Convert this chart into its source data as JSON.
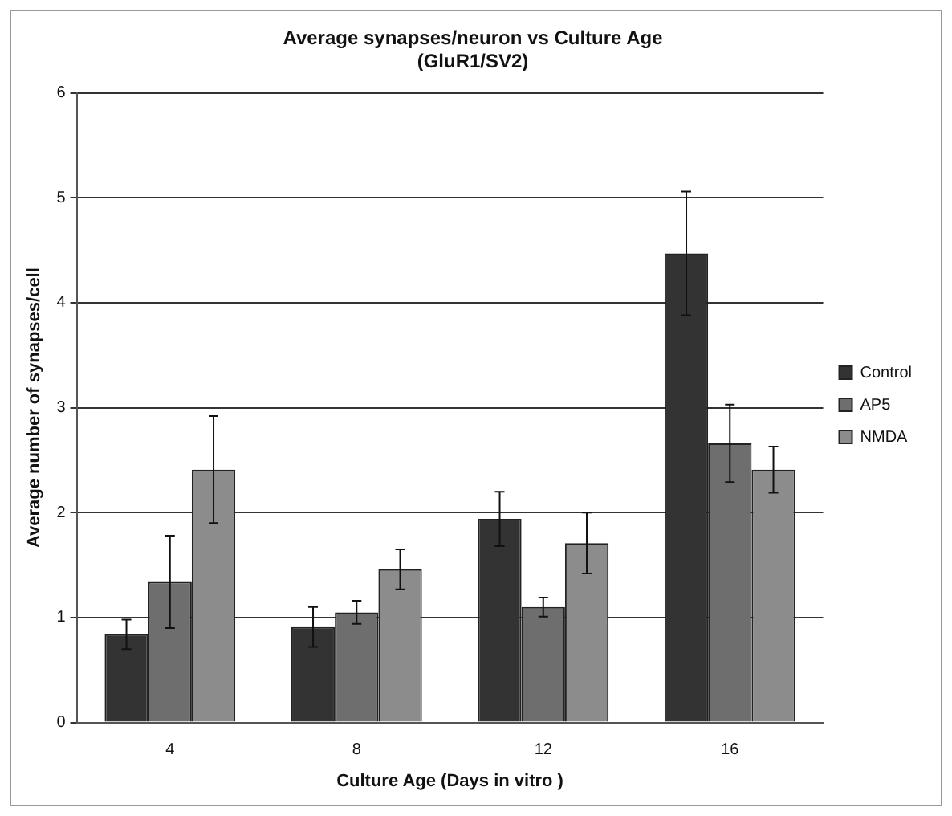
{
  "chart_data": {
    "type": "bar",
    "title": "Average synapses/neuron vs Culture Age",
    "subtitle": "(GluR1/SV2)",
    "xlabel": "Culture Age (Days in vitro )",
    "ylabel": "Average number of synapses/cell",
    "categories": [
      "4",
      "8",
      "12",
      "16"
    ],
    "series": [
      {
        "name": "Control",
        "color": "#333333",
        "values": [
          0.84,
          0.91,
          1.94,
          4.47
        ],
        "errors": [
          0.14,
          0.19,
          0.26,
          0.59
        ]
      },
      {
        "name": "AP5",
        "color": "#6e6e6e",
        "values": [
          1.34,
          1.05,
          1.1,
          2.66
        ],
        "errors": [
          0.44,
          0.11,
          0.09,
          0.37
        ]
      },
      {
        "name": "NMDA",
        "color": "#8c8c8c",
        "values": [
          2.41,
          1.46,
          1.71,
          2.41
        ],
        "errors": [
          0.51,
          0.19,
          0.29,
          0.22
        ]
      }
    ],
    "ylim": [
      0,
      6
    ],
    "yticks": [
      0,
      1,
      2,
      3,
      4,
      5,
      6
    ],
    "grid": "y",
    "legend": "right"
  }
}
